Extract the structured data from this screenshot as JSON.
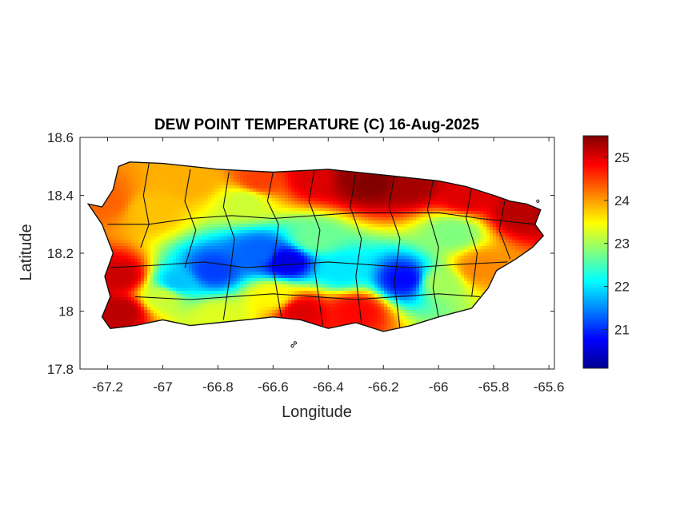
{
  "chart_data": {
    "type": "heatmap",
    "title": "DEW POINT TEMPERATURE (C) 16-Aug-2025",
    "xlabel": "Longitude",
    "ylabel": "Latitude",
    "xlim": [
      -67.3,
      -65.58
    ],
    "ylim": [
      17.8,
      18.6
    ],
    "x_ticks": [
      -67.2,
      -67,
      -66.8,
      -66.6,
      -66.4,
      -66.2,
      -66,
      -65.8,
      -65.6
    ],
    "x_tick_labels": [
      "-67.2",
      "-67",
      "-66.8",
      "-66.6",
      "-66.4",
      "-66.2",
      "-66",
      "-65.8",
      "-65.6"
    ],
    "y_ticks": [
      17.8,
      18,
      18.2,
      18.4,
      18.6
    ],
    "y_tick_labels": [
      "17.8",
      "18",
      "18.2",
      "18.4",
      "18.6"
    ],
    "colorbar": {
      "colormap": "jet",
      "range": [
        20.1,
        25.5
      ],
      "ticks": [
        21,
        22,
        23,
        24,
        25
      ],
      "tick_labels": [
        "21",
        "22",
        "23",
        "24",
        "25"
      ]
    },
    "grid": false,
    "island_outline": [
      [
        -67.27,
        18.37
      ],
      [
        -67.22,
        18.36
      ],
      [
        -67.18,
        18.42
      ],
      [
        -67.16,
        18.5
      ],
      [
        -67.12,
        18.515
      ],
      [
        -67.0,
        18.51
      ],
      [
        -66.8,
        18.49
      ],
      [
        -66.6,
        18.48
      ],
      [
        -66.4,
        18.49
      ],
      [
        -66.2,
        18.47
      ],
      [
        -66.0,
        18.45
      ],
      [
        -65.9,
        18.43
      ],
      [
        -65.8,
        18.4
      ],
      [
        -65.74,
        18.38
      ],
      [
        -65.68,
        18.37
      ],
      [
        -65.63,
        18.35
      ],
      [
        -65.65,
        18.3
      ],
      [
        -65.62,
        18.26
      ],
      [
        -65.66,
        18.22
      ],
      [
        -65.72,
        18.18
      ],
      [
        -65.79,
        18.14
      ],
      [
        -65.82,
        18.08
      ],
      [
        -65.88,
        18.01
      ],
      [
        -66.0,
        17.98
      ],
      [
        -66.1,
        17.95
      ],
      [
        -66.2,
        17.93
      ],
      [
        -66.3,
        17.96
      ],
      [
        -66.4,
        17.94
      ],
      [
        -66.5,
        17.97
      ],
      [
        -66.6,
        17.98
      ],
      [
        -66.7,
        17.97
      ],
      [
        -66.8,
        17.96
      ],
      [
        -66.9,
        17.95
      ],
      [
        -67.0,
        17.97
      ],
      [
        -67.1,
        17.95
      ],
      [
        -67.19,
        17.94
      ],
      [
        -67.22,
        17.98
      ],
      [
        -67.19,
        18.05
      ],
      [
        -67.21,
        18.12
      ],
      [
        -67.18,
        18.2
      ],
      [
        -67.22,
        18.3
      ]
    ],
    "field_centers": [
      [
        -66.25,
        18.45,
        25.5
      ],
      [
        -66.3,
        18.47,
        25.4
      ],
      [
        -66.1,
        18.44,
        25.3
      ],
      [
        -66.45,
        18.46,
        25.0
      ],
      [
        -65.9,
        18.4,
        25.0
      ],
      [
        -65.7,
        18.34,
        25.2
      ],
      [
        -67.15,
        18.12,
        25.1
      ],
      [
        -67.15,
        18.0,
        25.2
      ],
      [
        -66.5,
        18.0,
        25.0
      ],
      [
        -66.3,
        18.0,
        24.8
      ],
      [
        -66.65,
        18.45,
        24.5
      ],
      [
        -66.9,
        18.45,
        23.9
      ],
      [
        -67.05,
        18.35,
        23.8
      ],
      [
        -67.2,
        18.38,
        24.3
      ],
      [
        -66.7,
        18.38,
        23.2
      ],
      [
        -65.95,
        18.27,
        22.8
      ],
      [
        -66.82,
        18.14,
        21.1
      ],
      [
        -66.55,
        18.17,
        20.6
      ],
      [
        -66.65,
        18.2,
        21.3
      ],
      [
        -66.12,
        18.11,
        20.8
      ],
      [
        -66.35,
        18.14,
        22.0
      ],
      [
        -66.95,
        18.1,
        21.8
      ],
      [
        -66.45,
        18.25,
        22.7
      ],
      [
        -66.0,
        18.1,
        23.0
      ],
      [
        -65.85,
        18.15,
        24.1
      ],
      [
        -66.8,
        17.98,
        23.3
      ],
      [
        -66.6,
        18.05,
        23.5
      ],
      [
        -67.0,
        18.05,
        23.2
      ]
    ],
    "municipality_lines": [
      [
        [
          -67.05,
          18.51
        ],
        [
          -67.07,
          18.4
        ],
        [
          -67.05,
          18.3
        ],
        [
          -67.08,
          18.22
        ]
      ],
      [
        [
          -66.9,
          18.49
        ],
        [
          -66.92,
          18.38
        ],
        [
          -66.88,
          18.28
        ],
        [
          -66.92,
          18.15
        ]
      ],
      [
        [
          -66.76,
          18.48
        ],
        [
          -66.78,
          18.36
        ],
        [
          -66.74,
          18.25
        ],
        [
          -66.76,
          18.1
        ],
        [
          -66.78,
          17.97
        ]
      ],
      [
        [
          -66.6,
          18.48
        ],
        [
          -66.62,
          18.38
        ],
        [
          -66.58,
          18.3
        ],
        [
          -66.6,
          18.15
        ],
        [
          -66.57,
          17.98
        ]
      ],
      [
        [
          -66.45,
          18.49
        ],
        [
          -66.47,
          18.38
        ],
        [
          -66.43,
          18.28
        ],
        [
          -66.45,
          18.15
        ],
        [
          -66.42,
          17.95
        ]
      ],
      [
        [
          -66.3,
          18.48
        ],
        [
          -66.32,
          18.36
        ],
        [
          -66.28,
          18.25
        ],
        [
          -66.3,
          18.12
        ],
        [
          -66.28,
          17.96
        ]
      ],
      [
        [
          -66.16,
          18.47
        ],
        [
          -66.18,
          18.36
        ],
        [
          -66.14,
          18.25
        ],
        [
          -66.16,
          18.1
        ],
        [
          -66.14,
          17.94
        ]
      ],
      [
        [
          -66.02,
          18.45
        ],
        [
          -66.04,
          18.35
        ],
        [
          -66.0,
          18.22
        ],
        [
          -66.02,
          18.08
        ],
        [
          -66.0,
          17.98
        ]
      ],
      [
        [
          -65.88,
          18.43
        ],
        [
          -65.9,
          18.32
        ],
        [
          -65.86,
          18.2
        ],
        [
          -65.88,
          18.05
        ]
      ],
      [
        [
          -65.76,
          18.38
        ],
        [
          -65.78,
          18.28
        ],
        [
          -65.74,
          18.18
        ]
      ],
      [
        [
          -67.2,
          18.3
        ],
        [
          -67.05,
          18.3
        ],
        [
          -66.9,
          18.32
        ],
        [
          -66.75,
          18.33
        ],
        [
          -66.6,
          18.32
        ],
        [
          -66.45,
          18.33
        ],
        [
          -66.3,
          18.34
        ],
        [
          -66.15,
          18.34
        ],
        [
          -66.0,
          18.34
        ],
        [
          -65.85,
          18.32
        ],
        [
          -65.65,
          18.3
        ]
      ],
      [
        [
          -67.19,
          18.15
        ],
        [
          -67.0,
          18.16
        ],
        [
          -66.85,
          18.17
        ],
        [
          -66.7,
          18.15
        ],
        [
          -66.55,
          18.16
        ],
        [
          -66.4,
          18.17
        ],
        [
          -66.25,
          18.16
        ],
        [
          -66.1,
          18.15
        ],
        [
          -65.95,
          18.16
        ],
        [
          -65.75,
          18.17
        ]
      ],
      [
        [
          -67.1,
          18.05
        ],
        [
          -66.9,
          18.04
        ],
        [
          -66.75,
          18.05
        ],
        [
          -66.6,
          18.06
        ],
        [
          -66.45,
          18.05
        ],
        [
          -66.3,
          18.04
        ],
        [
          -66.15,
          18.05
        ],
        [
          -66.0,
          18.06
        ],
        [
          -65.85,
          18.05
        ]
      ]
    ],
    "islets": [
      [
        -66.53,
        17.88
      ],
      [
        -66.52,
        17.89
      ],
      [
        -65.64,
        18.38
      ]
    ]
  }
}
